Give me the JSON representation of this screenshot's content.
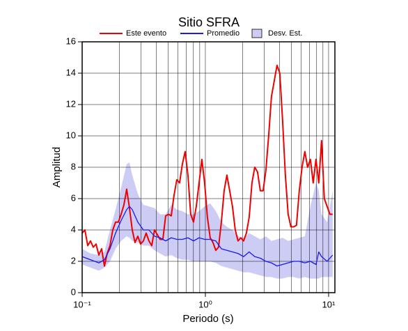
{
  "chart_data": {
    "type": "line",
    "title": "Sitio SFRA",
    "xlabel": "Periodo (s)",
    "ylabel": "Amplitud",
    "xscale": "log",
    "xlim": [
      0.1,
      11.25
    ],
    "ylim": [
      0,
      16
    ],
    "yticks": [
      0,
      2,
      4,
      6,
      8,
      10,
      12,
      14,
      16
    ],
    "xticks": [
      {
        "value": 0.1,
        "label": "10⁻¹"
      },
      {
        "value": 1,
        "label": "10⁰"
      },
      {
        "value": 10,
        "label": "10¹"
      }
    ],
    "xminorticks": [
      0.2,
      0.3,
      0.4,
      0.5,
      0.6,
      0.7,
      0.8,
      0.9,
      2,
      3,
      4,
      5,
      6,
      7,
      8,
      9
    ],
    "grid": true,
    "band": {
      "name": "Desv. Est.",
      "color": "#ccccf5",
      "x": [
        0.1,
        0.1169,
        0.1366,
        0.1516,
        0.1682,
        0.1867,
        0.2071,
        0.2298,
        0.2421,
        0.255,
        0.283,
        0.314,
        0.3484,
        0.3866,
        0.429,
        0.4761,
        0.5283,
        0.5862,
        0.6505,
        0.7218,
        0.801,
        0.8888,
        0.9863,
        1.094,
        1.215,
        1.348,
        1.495,
        1.659,
        1.841,
        2.043,
        2.267,
        2.516,
        2.792,
        3.098,
        3.437,
        3.814,
        4.232,
        4.696,
        5.211,
        5.782,
        6.416,
        7.119,
        7.9,
        8.322,
        8.766,
        9.727,
        10.79
      ],
      "upper": [
        2.8,
        2.5,
        2.4,
        2.6,
        4.0,
        5.3,
        6.7,
        8.2,
        8.3,
        7.5,
        6.3,
        5.6,
        5.5,
        5.4,
        5.0,
        5.0,
        5.6,
        5.3,
        5.2,
        5.0,
        5.0,
        5.2,
        5.5,
        5.7,
        5.2,
        4.5,
        4.2,
        4.0,
        3.6,
        3.5,
        3.8,
        3.6,
        3.4,
        3.6,
        3.3,
        3.4,
        3.5,
        3.3,
        3.4,
        3.5,
        3.6,
        5.5,
        7.0,
        6.5,
        5.0,
        4.5,
        6.5
      ],
      "lower": [
        1.8,
        1.6,
        1.4,
        1.6,
        2.0,
        2.8,
        3.3,
        3.6,
        3.5,
        3.3,
        3.2,
        3.0,
        3.0,
        2.7,
        2.5,
        2.3,
        2.4,
        2.2,
        2.1,
        2.1,
        2.0,
        2.0,
        2.0,
        2.0,
        1.9,
        1.7,
        1.6,
        1.5,
        1.4,
        1.3,
        1.3,
        1.2,
        1.1,
        1.0,
        1.0,
        0.9,
        0.9,
        1.0,
        1.0,
        0.9,
        1.0,
        0.9,
        0.9,
        0.9,
        1.0,
        1.0,
        1.0
      ]
    },
    "series": [
      {
        "name": "Este evento",
        "color": "#ee0000",
        "x": [
          0.1,
          0.1053,
          0.111,
          0.1169,
          0.1231,
          0.1297,
          0.1366,
          0.1439,
          0.1516,
          0.1597,
          0.1682,
          0.1772,
          0.1867,
          0.1966,
          0.2071,
          0.2182,
          0.2298,
          0.2421,
          0.255,
          0.2686,
          0.283,
          0.2981,
          0.314,
          0.3308,
          0.3484,
          0.367,
          0.3866,
          0.4073,
          0.429,
          0.4519,
          0.4761,
          0.5015,
          0.5283,
          0.5565,
          0.5862,
          0.6175,
          0.6505,
          0.6852,
          0.7218,
          0.7604,
          0.801,
          0.8438,
          0.8888,
          0.9363,
          0.9863,
          1.039,
          1.094,
          1.153,
          1.215,
          1.279,
          1.348,
          1.42,
          1.495,
          1.575,
          1.659,
          1.748,
          1.841,
          1.94,
          2.043,
          2.152,
          2.267,
          2.388,
          2.516,
          2.65,
          2.792,
          2.941,
          3.098,
          3.263,
          3.437,
          3.621,
          3.814,
          4.018,
          4.232,
          4.458,
          4.696,
          4.947,
          5.211,
          5.489,
          5.782,
          6.091,
          6.416,
          6.758,
          7.119,
          7.499,
          7.9,
          8.322,
          8.766,
          9.234,
          9.727,
          10.25,
          10.79
        ],
        "values": [
          3.8,
          4.0,
          3.0,
          3.3,
          2.9,
          3.1,
          2.4,
          2.8,
          1.7,
          2.5,
          3.0,
          4.0,
          4.5,
          4.5,
          5.0,
          5.6,
          6.6,
          5.4,
          4.0,
          3.2,
          3.6,
          3.1,
          3.3,
          3.8,
          3.3,
          3.0,
          4.0,
          3.7,
          3.4,
          3.4,
          4.9,
          5.0,
          4.9,
          6.2,
          7.2,
          7.0,
          8.2,
          9.0,
          7.5,
          5.0,
          4.5,
          5.5,
          7.0,
          8.5,
          7.0,
          4.8,
          3.5,
          3.2,
          2.7,
          2.9,
          4.5,
          6.5,
          7.5,
          6.5,
          5.5,
          4.0,
          3.3,
          3.5,
          3.3,
          3.8,
          4.8,
          7.0,
          8.0,
          7.7,
          6.5,
          6.5,
          7.8,
          10.0,
          12.5,
          13.5,
          14.5,
          14.0,
          11.0,
          7.5,
          5.0,
          4.2,
          4.2,
          4.3,
          6.5,
          8.0,
          9.0,
          8.0,
          8.5,
          7.0,
          8.5,
          7.0,
          9.7,
          6.0,
          5.5,
          5.0,
          5.0
        ]
      },
      {
        "name": "Promedio",
        "color": "#1a1aee",
        "x": [
          0.1,
          0.1169,
          0.1366,
          0.1516,
          0.1682,
          0.1867,
          0.2071,
          0.2298,
          0.2421,
          0.255,
          0.283,
          0.314,
          0.3484,
          0.3866,
          0.429,
          0.4761,
          0.5283,
          0.5862,
          0.6505,
          0.7218,
          0.801,
          0.8888,
          0.9863,
          1.094,
          1.215,
          1.348,
          1.495,
          1.659,
          1.841,
          2.043,
          2.267,
          2.516,
          2.792,
          3.098,
          3.437,
          3.814,
          4.232,
          4.696,
          5.211,
          5.782,
          6.416,
          7.119,
          7.9,
          8.322,
          8.766,
          9.727,
          10.79
        ],
        "values": [
          2.3,
          2.1,
          1.9,
          2.1,
          2.8,
          3.8,
          4.6,
          5.3,
          5.5,
          5.3,
          4.5,
          4.0,
          4.0,
          3.6,
          3.5,
          3.3,
          3.5,
          3.4,
          3.4,
          3.5,
          3.3,
          3.5,
          3.4,
          3.4,
          3.3,
          2.8,
          2.7,
          2.6,
          2.5,
          2.3,
          2.6,
          2.3,
          2.2,
          2.0,
          1.9,
          1.7,
          1.8,
          1.9,
          2.0,
          2.0,
          1.9,
          2.0,
          1.8,
          2.6,
          2.3,
          2.0,
          2.4
        ]
      }
    ]
  }
}
